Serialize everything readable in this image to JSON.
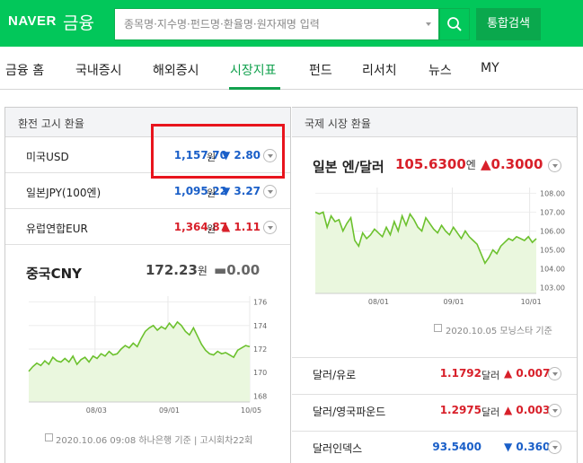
{
  "header": {
    "logo": "NAVER",
    "logo_sub": "금융",
    "search_placeholder": "종목명·지수명·펀드명·환율명·원자재명 입력",
    "total_search_label": "통합검색"
  },
  "nav": {
    "items": [
      "금융 홈",
      "국내증시",
      "해외증시",
      "시장지표",
      "펀드",
      "리서치",
      "뉴스",
      "MY"
    ],
    "active": "시장지표"
  },
  "exchange": {
    "title": "환전 고시 환율",
    "rows": [
      {
        "name": "미국USD",
        "value": "1,157.70",
        "unit": "원",
        "arrow": "▼",
        "change": "2.80",
        "color": "#1a5fc8"
      },
      {
        "name": "일본JPY(100엔)",
        "value": "1,095.22",
        "unit": "원",
        "arrow": "▼",
        "change": "3.27",
        "color": "#1a5fc8"
      },
      {
        "name": "유럽연합EUR",
        "value": "1,364.87",
        "unit": "원",
        "arrow": "▲",
        "change": "1.11",
        "color": "#d8202a"
      }
    ],
    "featured": {
      "name": "중국CNY",
      "value": "172.23",
      "unit": "원",
      "arrow": "▬",
      "change": "0.00",
      "color": "#666666"
    },
    "footnote": "2020.10.06 09:08 하나은행 기준 | 고시회차22회"
  },
  "international": {
    "title": "국제 시장 환율",
    "featured": {
      "name": "일본 엔/달러",
      "value": "105.6300",
      "unit": "엔",
      "arrow": "▲",
      "change": "0.3000",
      "color": "#d8202a"
    },
    "footnote": "2020.10.05 모닝스타 기준",
    "rows": [
      {
        "name": "달러/유로",
        "value": "1.1792",
        "unit": "달러",
        "arrow": "▲",
        "change": "0.0077",
        "color": "#d8202a"
      },
      {
        "name": "달러/영국파운드",
        "value": "1.2975",
        "unit": "달러",
        "arrow": "▲",
        "change": "0.0039",
        "color": "#d8202a"
      },
      {
        "name": "달러인덱스",
        "value": "93.5400",
        "unit": "",
        "arrow": "▼",
        "change": "0.3600",
        "color": "#1a5fc8"
      }
    ]
  },
  "chart_data": [
    {
      "type": "area",
      "x_ticks": [
        "08/03",
        "09/01",
        "10/05"
      ],
      "y_ticks": [
        168,
        170,
        172,
        174,
        176
      ],
      "ylim": [
        167.5,
        176.5
      ],
      "line_color": "#6cc12e",
      "fill_color": "#eaf7de",
      "values": [
        170.1,
        170.5,
        170.8,
        170.6,
        171.0,
        170.7,
        171.3,
        171.0,
        170.9,
        171.2,
        170.9,
        171.4,
        170.7,
        171.1,
        171.3,
        170.9,
        171.4,
        171.2,
        171.6,
        171.4,
        171.8,
        171.5,
        171.6,
        172.0,
        172.3,
        172.1,
        172.5,
        172.2,
        172.9,
        173.5,
        173.8,
        174.0,
        173.6,
        173.9,
        173.7,
        174.2,
        173.8,
        174.3,
        174.0,
        173.5,
        173.2,
        173.8,
        173.1,
        172.4,
        171.9,
        171.6,
        171.5,
        171.8,
        171.6,
        171.7,
        171.5,
        171.3,
        171.9,
        172.1,
        172.3,
        172.2
      ]
    },
    {
      "type": "area",
      "x_ticks": [
        "08/01",
        "09/01",
        "10/01"
      ],
      "y_ticks": [
        103.0,
        104.0,
        105.0,
        106.0,
        107.0,
        108.0
      ],
      "ylim": [
        102.7,
        108.3
      ],
      "line_color": "#6cc12e",
      "fill_color": "#eaf7de",
      "values": [
        107.0,
        106.9,
        107.0,
        106.2,
        106.8,
        106.5,
        106.6,
        106.0,
        106.4,
        106.7,
        105.5,
        105.2,
        105.9,
        105.6,
        105.8,
        106.1,
        105.9,
        105.7,
        106.2,
        105.8,
        106.5,
        106.0,
        106.8,
        106.3,
        106.9,
        106.6,
        106.2,
        106.0,
        106.7,
        106.4,
        106.1,
        105.9,
        106.3,
        106.0,
        105.8,
        106.2,
        105.9,
        105.6,
        106.0,
        105.7,
        105.5,
        105.3,
        104.8,
        104.3,
        104.6,
        105.0,
        104.8,
        105.2,
        105.4,
        105.6,
        105.5,
        105.7,
        105.6,
        105.5,
        105.7,
        105.4,
        105.6
      ]
    }
  ]
}
